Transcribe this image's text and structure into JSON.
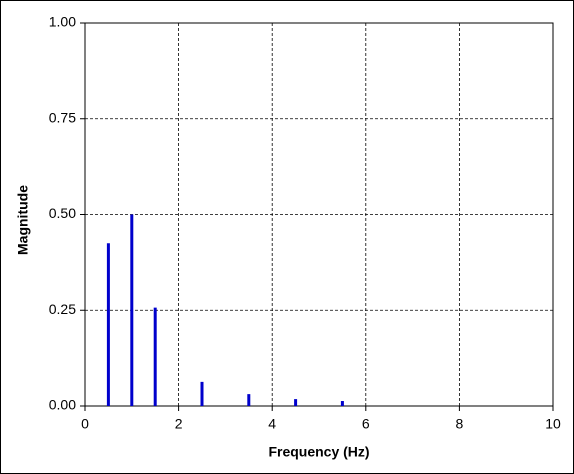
{
  "chart_data": {
    "type": "stem",
    "x_label": "Frequency  (Hz)",
    "y_label": "Magnitude",
    "x": [
      0.5,
      1,
      1.5,
      2.5,
      3.5,
      4.5,
      5.5
    ],
    "values": [
      0.425,
      0.5,
      0.257,
      0.063,
      0.031,
      0.018,
      0.013
    ],
    "color": "#0000cc",
    "xlim": [
      0,
      10
    ],
    "xticks": [
      0,
      2,
      4,
      6,
      8,
      10
    ],
    "ylim": [
      0,
      1
    ],
    "yticks": [
      {
        "value": 0,
        "label": "0.00"
      },
      {
        "value": 0.25,
        "label": "0.25"
      },
      {
        "value": 0.5,
        "label": "0.50"
      },
      {
        "value": 0.75,
        "label": "0.75"
      },
      {
        "value": 1,
        "label": "1.00"
      }
    ],
    "grid": true
  }
}
